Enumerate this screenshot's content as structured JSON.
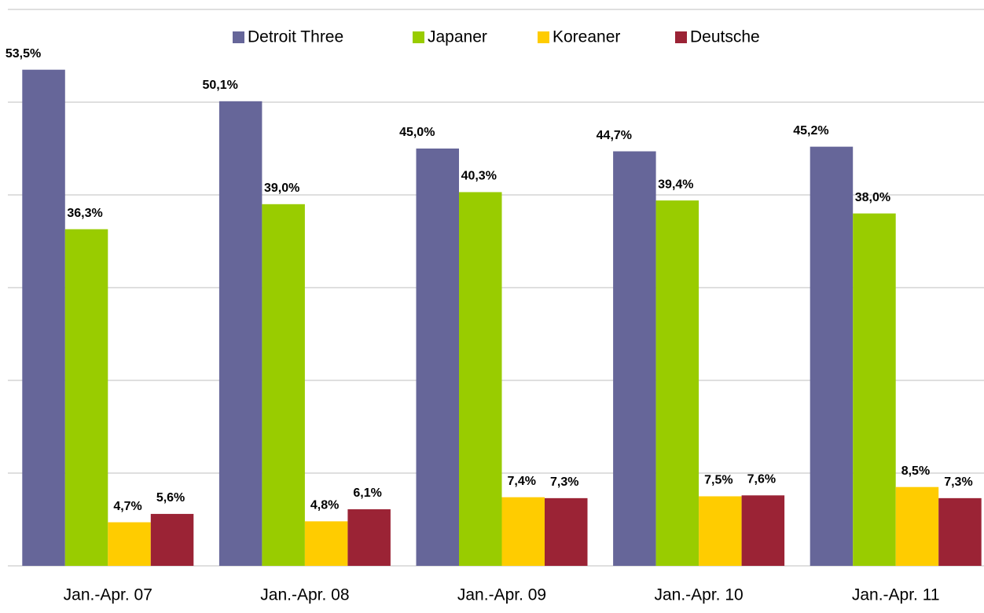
{
  "chart_data": {
    "type": "bar",
    "categories": [
      "Jan.-Apr. 07",
      "Jan.-Apr. 08",
      "Jan.-Apr. 09",
      "Jan.-Apr. 10",
      "Jan.-Apr. 11"
    ],
    "series": [
      {
        "name": "Detroit Three",
        "color": "#666699",
        "values": [
          53.5,
          50.1,
          45.0,
          44.7,
          45.2
        ],
        "value_labels": [
          "53,5%",
          "50,1%",
          "45,0%",
          "44,7%",
          "45,2%"
        ]
      },
      {
        "name": "Japaner",
        "color": "#99cc00",
        "values": [
          36.3,
          39.0,
          40.3,
          39.4,
          38.0
        ],
        "value_labels": [
          "36,3%",
          "39,0%",
          "40,3%",
          "39,4%",
          "38,0%"
        ]
      },
      {
        "name": "Koreaner",
        "color": "#ffcc00",
        "values": [
          4.7,
          4.8,
          7.4,
          7.5,
          8.5
        ],
        "value_labels": [
          "4,7%",
          "4,8%",
          "7,4%",
          "7,5%",
          "8,5%"
        ]
      },
      {
        "name": "Deutsche",
        "color": "#9b2335",
        "values": [
          5.6,
          6.1,
          7.3,
          7.6,
          7.3
        ],
        "value_labels": [
          "5,6%",
          "6,1%",
          "7,3%",
          "7,6%",
          "7,3%"
        ]
      }
    ],
    "ylim": [
      0,
      60
    ],
    "yticks": [
      0,
      10,
      20,
      30,
      40,
      50,
      60
    ],
    "grid": true,
    "legend": "top"
  }
}
